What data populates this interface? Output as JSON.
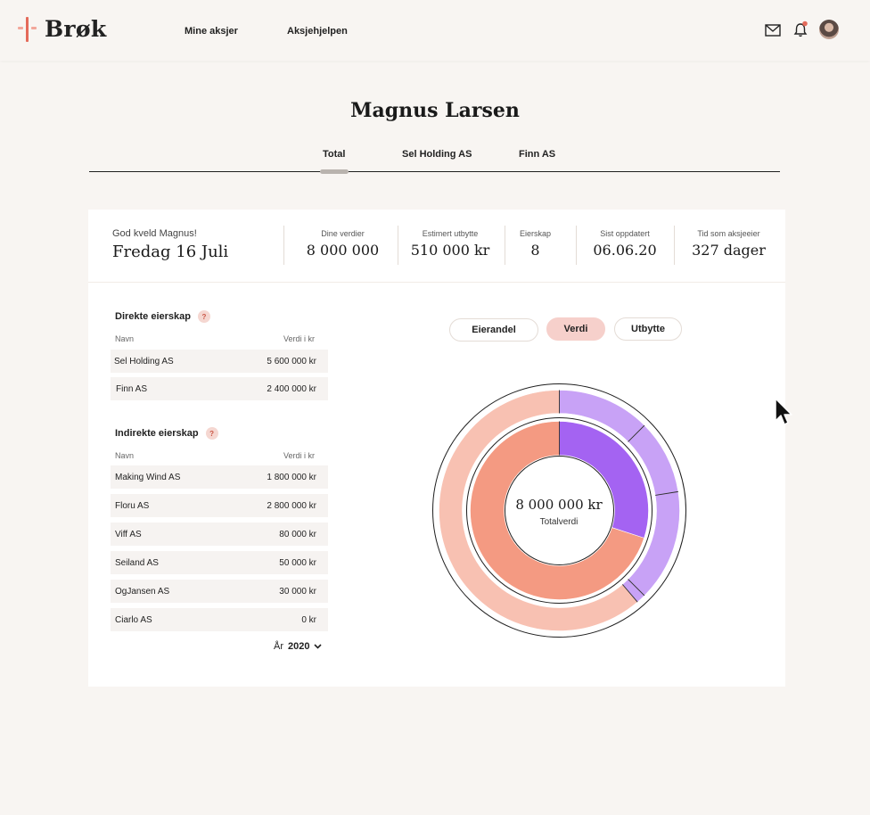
{
  "brand": {
    "name": "Brøk",
    "accent": "#e46a5a"
  },
  "nav": {
    "item_1": "Mine aksjer",
    "item_2": "Aksjehjelpen"
  },
  "header_icons": {
    "mail": "mail-icon",
    "bell": "bell-icon",
    "avatar": "avatar"
  },
  "page": {
    "title": "Magnus Larsen"
  },
  "tabs": [
    "Total",
    "Sel Holding AS",
    "Finn AS"
  ],
  "summary": {
    "greeting": "God kveld Magnus!",
    "date": "Fredag 16 Juli",
    "stats": [
      {
        "label": "Dine verdier",
        "value": "8 000 000"
      },
      {
        "label": "Estimert utbytte",
        "value": "510 000 kr"
      },
      {
        "label": "Eierskap",
        "value": "8"
      },
      {
        "label": "Sist oppdatert",
        "value": "06.06.20"
      },
      {
        "label": "Tid som aksjeeier",
        "value": "327 dager"
      }
    ]
  },
  "direct": {
    "title": "Direkte eierskap",
    "help": "?",
    "col_name": "Navn",
    "col_value": "Verdi i kr",
    "rows": [
      {
        "name": "Sel Holding AS",
        "value": "5 600 000 kr"
      },
      {
        "name": "Finn AS",
        "value": "2 400 000 kr"
      }
    ]
  },
  "indirect": {
    "title": "Indirekte eierskap",
    "help": "?",
    "col_name": "Navn",
    "col_value": "Verdi i kr",
    "rows": [
      {
        "name": "Making Wind AS",
        "value": "1 800 000 kr"
      },
      {
        "name": "Floru AS",
        "value": "2 800 000 kr"
      },
      {
        "name": "Viff AS",
        "value": "80 000 kr"
      },
      {
        "name": "Seiland AS",
        "value": "50 000 kr"
      },
      {
        "name": "OgJansen AS",
        "value": "30 000 kr"
      },
      {
        "name": "Ciarlo AS",
        "value": "0 kr"
      }
    ]
  },
  "year_selector": {
    "label": "År",
    "value": "2020"
  },
  "chart_toggle": {
    "options": [
      "Eierandel",
      "Verdi",
      "Utbytte"
    ],
    "selected": "Verdi"
  },
  "chart": {
    "center_value": "8 000 000 kr",
    "center_label": "Totalverdi",
    "colors": {
      "purple": "#a463f2",
      "purple_light": "#c8a2f6",
      "salmon": "#f49a82",
      "salmon_light": "#f8c1b2"
    }
  },
  "chart_data": {
    "type": "pie",
    "inner_ring": [
      {
        "category": "Sel Holding AS",
        "value": 5600000
      },
      {
        "category": "Finn AS",
        "value": 2400000
      }
    ],
    "outer_ring": [
      {
        "value": 1000000
      },
      {
        "value": 800000
      },
      {
        "value": 1200000
      },
      {
        "value": 100000
      },
      {
        "value": 4900000
      }
    ]
  }
}
